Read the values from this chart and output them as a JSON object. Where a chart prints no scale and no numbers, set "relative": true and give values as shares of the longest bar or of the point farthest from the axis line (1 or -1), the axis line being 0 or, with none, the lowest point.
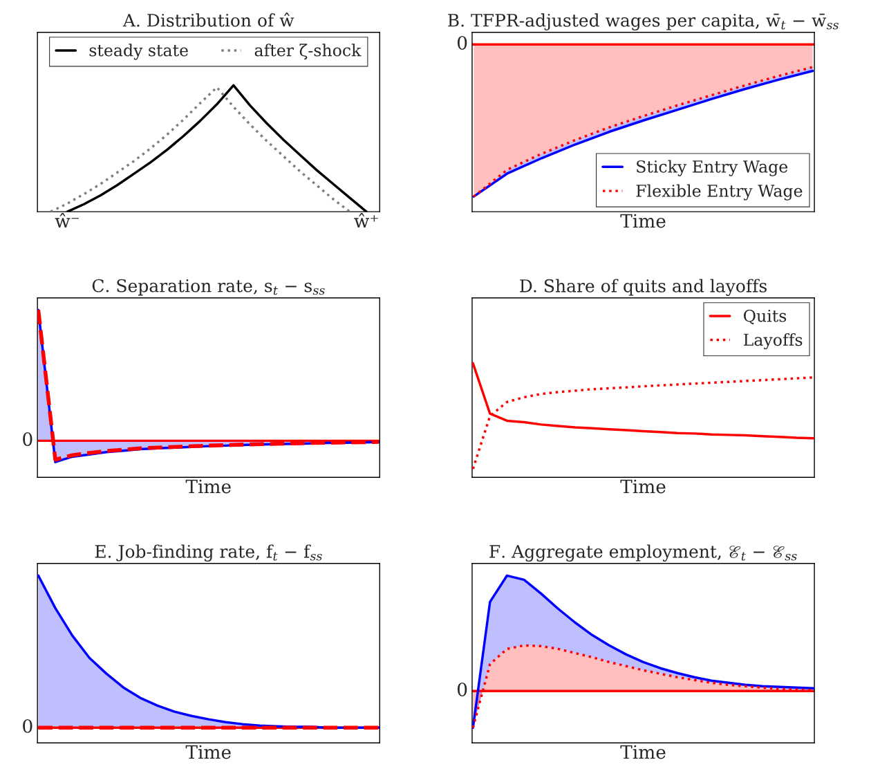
{
  "chart_data": [
    {
      "type": "line",
      "title": "A. Distribution of ŵ",
      "relative": true,
      "legend": "top",
      "grid": false,
      "tick_labels": "x",
      "categories": [
        null,
        "ŵ⁻",
        null,
        null,
        null,
        null,
        null,
        null,
        null,
        null,
        null,
        null,
        null,
        null,
        null,
        null,
        null,
        null,
        null,
        "ŵ⁺"
      ],
      "series": [
        {
          "name": "steady state",
          "color": "#000000",
          "line_style": "solid",
          "values": [
            null,
            0,
            0.06,
            0.13,
            0.21,
            0.3,
            0.39,
            0.49,
            0.6,
            0.72,
            0.85,
            1,
            0.84,
            0.7,
            0.57,
            0.45,
            0.33,
            0.22,
            0.11,
            0
          ]
        },
        {
          "name": "after ζ-shock",
          "color": "#808080",
          "line_style": "dotted",
          "values": [
            0,
            0.065,
            0.14,
            0.22,
            0.31,
            0.4,
            0.5,
            0.61,
            0.73,
            0.86,
            0.985,
            0.83,
            0.69,
            0.56,
            0.44,
            0.32,
            0.21,
            0.1,
            0,
            null
          ]
        }
      ]
    },
    {
      "type": "line",
      "title": "B. TFPR-adjusted wages per capita, w̄$_{t}$ − w̄$_{ss}$",
      "xlabel": "Time",
      "relative": true,
      "legend": "bottom right",
      "grid": false,
      "tick_labels": false,
      "categories": [
        null,
        null,
        null,
        null,
        null,
        null,
        null,
        null,
        null,
        null,
        null
      ],
      "ref_lines": [
        {
          "axis": "y",
          "value": 0,
          "label": "0",
          "color": "#ff0000",
          "line_style": "solid"
        }
      ],
      "series": [
        {
          "name": "Sticky Entry Wage",
          "color": "#0000ff",
          "line_style": "solid",
          "values": [
            -1,
            -0.847,
            -0.748,
            -0.657,
            -0.574,
            -0.5,
            -0.43,
            -0.36,
            -0.293,
            -0.231,
            -0.174
          ],
          "lower": [
            -1,
            -0.847,
            -0.748,
            -0.657,
            -0.574,
            -0.5,
            -0.43,
            -0.36,
            -0.293,
            -0.231,
            -0.174
          ],
          "upper": [
            -1,
            -0.822,
            -0.719,
            -0.628,
            -0.545,
            -0.471,
            -0.401,
            -0.335,
            -0.269,
            -0.207,
            -0.149
          ]
        },
        {
          "name": "Flexible Entry Wage",
          "type": "area",
          "color": "#ff0000",
          "line_style": "dotted",
          "values": [
            -1,
            -0.822,
            -0.719,
            -0.628,
            -0.545,
            -0.471,
            -0.401,
            -0.335,
            -0.269,
            -0.207,
            -0.149
          ]
        }
      ]
    },
    {
      "type": "line",
      "title": "C. Separation rate, s$_{t}$ − s$_{ss}$",
      "xlabel": "Time",
      "relative": true,
      "grid": false,
      "tick_labels": false,
      "categories": [
        null,
        null,
        null,
        null,
        null,
        null,
        null,
        null,
        null,
        null,
        null,
        null,
        null,
        null,
        null,
        null,
        null,
        null,
        null,
        null,
        null
      ],
      "ref_lines": [
        {
          "axis": "y",
          "value": 0,
          "label": "0",
          "color": "#ff0000",
          "line_style": "solid"
        }
      ],
      "series": [
        {
          "type": "area",
          "color": "#0000ff",
          "line_style": "solid",
          "values": [
            1,
            -0.163,
            -0.122,
            -0.105,
            -0.087,
            -0.076,
            -0.064,
            -0.058,
            -0.052,
            -0.047,
            -0.041,
            -0.037,
            -0.032,
            -0.029,
            -0.026,
            -0.023,
            -0.02,
            -0.017,
            -0.015,
            -0.012,
            -0.01
          ]
        },
        {
          "color": "#ff0000",
          "line_style": "dashed",
          "values": [
            1,
            -0.145,
            -0.11,
            -0.093,
            -0.078,
            -0.068,
            -0.058,
            -0.052,
            -0.047,
            -0.042,
            -0.037,
            -0.033,
            -0.029,
            -0.026,
            -0.023,
            -0.02,
            -0.017,
            -0.015,
            -0.013,
            -0.011,
            -0.009
          ]
        }
      ]
    },
    {
      "type": "line",
      "title": "D. Share of quits and layoffs",
      "xlabel": "Time",
      "relative": true,
      "legend": "top right",
      "grid": false,
      "tick_labels": false,
      "categories": [
        null,
        null,
        null,
        null,
        null,
        null,
        null,
        null,
        null,
        null,
        null,
        null,
        null,
        null,
        null,
        null,
        null,
        null,
        null,
        null,
        null
      ],
      "series": [
        {
          "name": "Quits",
          "color": "#ff0000",
          "line_style": "solid",
          "values": [
            1,
            0.558,
            0.496,
            0.483,
            0.463,
            0.45,
            0.438,
            0.43,
            0.421,
            0.413,
            0.405,
            0.397,
            0.388,
            0.384,
            0.376,
            0.372,
            0.368,
            0.36,
            0.355,
            0.347,
            0.343
          ]
        },
        {
          "name": "Layoffs",
          "color": "#ff0000",
          "line_style": "dotted",
          "values": [
            0.074,
            0.537,
            0.661,
            0.702,
            0.731,
            0.748,
            0.76,
            0.773,
            0.781,
            0.789,
            0.798,
            0.806,
            0.814,
            0.822,
            0.83,
            0.837,
            0.845,
            0.852,
            0.86,
            0.868,
            0.876
          ]
        }
      ]
    },
    {
      "type": "line",
      "title": "E. Job-finding rate, f$_{t}$ − f$_{ss}$",
      "xlabel": "Time",
      "relative": true,
      "grid": false,
      "tick_labels": false,
      "categories": [
        null,
        null,
        null,
        null,
        null,
        null,
        null,
        null,
        null,
        null,
        null,
        null,
        null,
        null,
        null,
        null,
        null,
        null,
        null,
        null,
        null
      ],
      "ref_lines": [
        {
          "axis": "y",
          "value": 0,
          "label": "0",
          "color": "#ff0000",
          "line_style": "solid"
        }
      ],
      "series": [
        {
          "type": "area",
          "color": "#0000ff",
          "line_style": "solid",
          "values": [
            1,
            0.786,
            0.605,
            0.459,
            0.355,
            0.264,
            0.195,
            0.145,
            0.105,
            0.077,
            0.055,
            0.036,
            0.023,
            0.014,
            0.009,
            0.005,
            0.005,
            0,
            0,
            0,
            0
          ]
        },
        {
          "color": "#ff0000",
          "line_style": "dashed",
          "values": [
            0,
            0,
            0,
            0,
            0,
            0,
            0,
            0,
            0,
            0,
            0,
            0,
            0,
            0,
            0,
            0,
            0,
            0,
            0,
            0,
            0
          ]
        }
      ]
    },
    {
      "type": "line",
      "title": "F. Aggregate employment, ℰ$_{t}$ − ℰ$_{ss}$",
      "xlabel": "Time",
      "relative": true,
      "grid": false,
      "tick_labels": false,
      "categories": [
        null,
        null,
        null,
        null,
        null,
        null,
        null,
        null,
        null,
        null,
        null,
        null,
        null,
        null,
        null,
        null,
        null,
        null,
        null,
        null,
        null
      ],
      "ref_lines": [
        {
          "axis": "y",
          "value": 0,
          "label": "0",
          "color": "#ff0000",
          "line_style": "solid"
        }
      ],
      "series": [
        {
          "color": "#0000ff",
          "line_style": "solid",
          "values": [
            -0.317,
            0.772,
            1,
            0.964,
            0.844,
            0.713,
            0.593,
            0.485,
            0.395,
            0.317,
            0.251,
            0.198,
            0.156,
            0.12,
            0.09,
            0.072,
            0.054,
            0.042,
            0.036,
            0.03,
            0.024
          ],
          "lower": [
            -0.317,
            0.234,
            0.365,
            0.395,
            0.389,
            0.365,
            0.329,
            0.293,
            0.251,
            0.216,
            0.18,
            0.15,
            0.12,
            0.096,
            0.072,
            0.054,
            0.042,
            0.03,
            0.018,
            0.012,
            0.006
          ],
          "upper": [
            -0.317,
            0.772,
            1,
            0.964,
            0.844,
            0.713,
            0.593,
            0.485,
            0.395,
            0.317,
            0.251,
            0.198,
            0.156,
            0.12,
            0.09,
            0.072,
            0.054,
            0.042,
            0.036,
            0.03,
            0.024
          ]
        },
        {
          "type": "area",
          "color": "#ff0000",
          "line_style": "dotted",
          "values": [
            -0.317,
            0.234,
            0.365,
            0.395,
            0.389,
            0.365,
            0.329,
            0.293,
            0.251,
            0.216,
            0.18,
            0.15,
            0.12,
            0.096,
            0.072,
            0.054,
            0.042,
            0.03,
            0.018,
            0.012,
            0.006
          ]
        }
      ]
    }
  ]
}
